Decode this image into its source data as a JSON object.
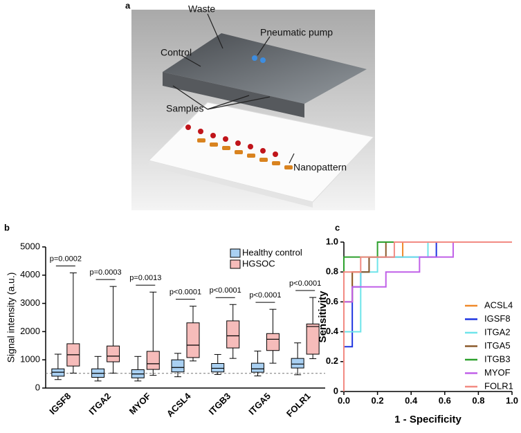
{
  "panel_labels": [
    "a",
    "b",
    "c"
  ],
  "device_diagram": {
    "labels": [
      "Waste",
      "Pneumatic pump",
      "Control",
      "Samples",
      "Nanopattern"
    ]
  },
  "chart_data": [
    {
      "type": "box",
      "ylabel": "Signal intensity (a.u.)",
      "categories": [
        "IGSF8",
        "ITGA2",
        "MYOF",
        "ACSL4",
        "ITGB3",
        "ITGA5",
        "FOLR1"
      ],
      "ylim": [
        0,
        5000
      ],
      "yticks": [
        0,
        1000,
        2000,
        3000,
        4000,
        5000
      ],
      "reference_line": 520,
      "series": [
        {
          "name": "Healthy control",
          "color": "#a9d0f2",
          "values": [
            [
              300,
              420,
              560,
              680,
              1200
            ],
            [
              250,
              380,
              520,
              680,
              1120
            ],
            [
              250,
              360,
              500,
              650,
              1120
            ],
            [
              400,
              570,
              730,
              1000,
              1230
            ],
            [
              480,
              570,
              700,
              870,
              1190
            ],
            [
              430,
              560,
              680,
              880,
              1310
            ],
            [
              470,
              710,
              850,
              1050,
              1600
            ]
          ]
        },
        {
          "name": "HGSOC",
          "color": "#f6bcba",
          "values": [
            [
              530,
              780,
              1180,
              1570,
              4080
            ],
            [
              530,
              930,
              1130,
              1490,
              3600
            ],
            [
              450,
              660,
              860,
              1300,
              3400
            ],
            [
              960,
              1080,
              1520,
              2310,
              2900
            ],
            [
              1050,
              1420,
              1850,
              2380,
              2960
            ],
            [
              880,
              1330,
              1730,
              1930,
              2790
            ],
            [
              1040,
              1200,
              2180,
              2270,
              3210
            ]
          ]
        }
      ],
      "annotations": [
        "p=0.0002",
        "p=0.0003",
        "p=0.0013",
        "p<0.0001",
        "p<0.0001",
        "p<0.0001",
        "p<0.0001"
      ]
    },
    {
      "type": "line",
      "xlabel": "1 - Specificity",
      "ylabel": "Sensitivity",
      "xlim": [
        0,
        1
      ],
      "ylim": [
        0,
        1
      ],
      "xticks": [
        {
          "value": 0,
          "label": "0.0"
        },
        {
          "value": 0.2,
          "label": "0.2"
        },
        {
          "value": 0.4,
          "label": "0.4"
        },
        {
          "value": 0.6,
          "label": "0.6"
        },
        {
          "value": 0.8,
          "label": "0.8"
        },
        {
          "value": 1,
          "label": "1.0"
        }
      ],
      "yticks": [
        0,
        {
          "value": 0.2,
          "label": "0.2"
        },
        {
          "value": 0.4,
          "label": "0.4"
        },
        {
          "value": 0.6,
          "label": "0.6"
        },
        {
          "value": 0.8,
          "label": "0.8"
        },
        {
          "value": 1,
          "label": "1.0"
        }
      ],
      "series": [
        {
          "name": "ACSL4",
          "color": "#f0892a",
          "x": [
            0,
            0,
            0.05,
            0.05,
            0.15,
            0.15,
            0.35,
            0.35,
            1
          ],
          "values": [
            0,
            0.6,
            0.6,
            0.8,
            0.8,
            0.9,
            0.9,
            1,
            1
          ]
        },
        {
          "name": "IGSF8",
          "color": "#1f35e0",
          "x": [
            0,
            0,
            0.05,
            0.05,
            0.1,
            0.1,
            0.15,
            0.15,
            0.55,
            0.55,
            1
          ],
          "values": [
            0,
            0.3,
            0.3,
            0.7,
            0.7,
            0.8,
            0.8,
            0.9,
            0.9,
            1,
            1
          ]
        },
        {
          "name": "ITGA2",
          "color": "#6ee4ea",
          "x": [
            0,
            0,
            0.1,
            0.1,
            0.2,
            0.2,
            0.5,
            0.5,
            1
          ],
          "values": [
            0,
            0.4,
            0.4,
            0.8,
            0.8,
            0.9,
            0.9,
            1,
            1
          ]
        },
        {
          "name": "ITGA5",
          "color": "#8b5a2b",
          "x": [
            0,
            0,
            0.05,
            0.05,
            0.15,
            0.15,
            0.25,
            0.25,
            1
          ],
          "values": [
            0,
            0.6,
            0.6,
            0.8,
            0.8,
            0.9,
            0.9,
            1,
            1
          ]
        },
        {
          "name": "ITGB3",
          "color": "#2ca02c",
          "x": [
            0,
            0,
            0.2,
            0.2,
            1
          ],
          "values": [
            0,
            0.9,
            0.9,
            1,
            1
          ]
        },
        {
          "name": "MYOF",
          "color": "#c060e8",
          "x": [
            0,
            0,
            0.05,
            0.05,
            0.25,
            0.25,
            0.45,
            0.45,
            0.65,
            0.65,
            1
          ],
          "values": [
            0,
            0.6,
            0.6,
            0.7,
            0.7,
            0.8,
            0.8,
            0.9,
            0.9,
            1,
            1
          ]
        },
        {
          "name": "FOLR1",
          "color": "#f28a82",
          "x": [
            0,
            0,
            0.1,
            0.1,
            0.3,
            0.3,
            1
          ],
          "values": [
            0,
            0.8,
            0.8,
            0.9,
            0.9,
            1,
            1
          ]
        }
      ]
    }
  ]
}
